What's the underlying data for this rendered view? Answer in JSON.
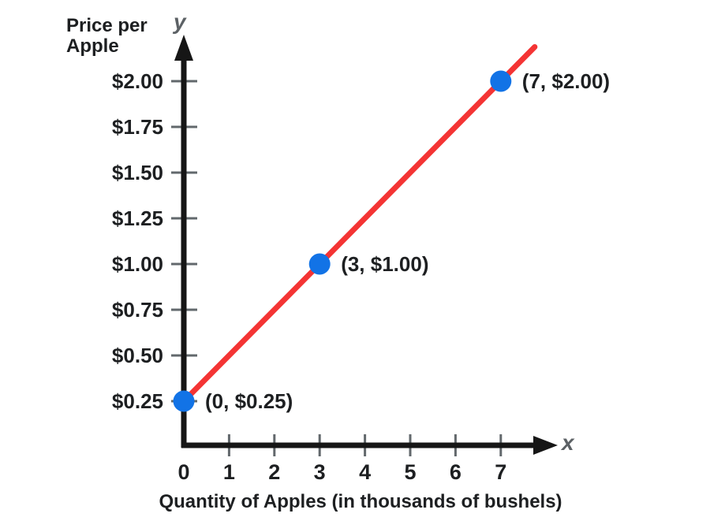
{
  "labels": {
    "y_axis_title": "Price per Apple",
    "x_axis_caption": "Quantity of Apples (in thousands of bushels)",
    "y_var": "y",
    "x_var": "x"
  },
  "chart_data": {
    "type": "line",
    "title": "",
    "xlabel": "Quantity of Apples (in thousands of bushels)",
    "ylabel": "Price per Apple",
    "xlim": [
      0,
      8.2
    ],
    "ylim": [
      0,
      2.25
    ],
    "grid": false,
    "legend": null,
    "x_ticks": [
      0,
      1,
      2,
      3,
      4,
      5,
      6,
      7
    ],
    "y_ticks": [
      {
        "value": 2.0,
        "label": "$2.00"
      },
      {
        "value": 1.75,
        "label": "$1.75"
      },
      {
        "value": 1.5,
        "label": "$1.50"
      },
      {
        "value": 1.25,
        "label": "$1.25"
      },
      {
        "value": 1.0,
        "label": "$1.00"
      },
      {
        "value": 0.75,
        "label": "$0.75"
      },
      {
        "value": 0.5,
        "label": "$0.50"
      },
      {
        "value": 0.25,
        "label": "$0.25"
      }
    ],
    "line": {
      "slope": 0.25,
      "intercept": 0.25,
      "x_start": 0,
      "x_end": 7.75,
      "color": "#f43434",
      "stroke_width": 7
    },
    "points": [
      {
        "x": 0,
        "y": 0.25,
        "label": "(0, $0.25)"
      },
      {
        "x": 3,
        "y": 1.0,
        "label": "(3, $1.00)"
      },
      {
        "x": 7,
        "y": 2.0,
        "label": "(7, $2.00)"
      }
    ],
    "point_color": "#1273e6",
    "point_radius": 13.5,
    "axis_color": "#161616",
    "tick_color": "#62686c",
    "text_color": "#1d1f21"
  }
}
